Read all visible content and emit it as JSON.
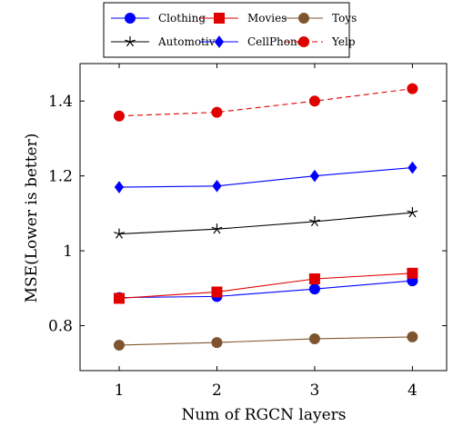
{
  "chart_data": {
    "type": "line",
    "x": [
      1,
      2,
      3,
      4
    ],
    "xticks": [
      "1",
      "2",
      "3",
      "4"
    ],
    "yticks": [
      "0.8",
      "1",
      "1.2",
      "1.4"
    ],
    "ytick_values": [
      0.8,
      1.0,
      1.2,
      1.4
    ],
    "xlabel": "Num of RGCN layers",
    "ylabel": "MSE(Lower is better)",
    "xlim": [
      0.6,
      4.35
    ],
    "ylim": [
      0.68,
      1.5
    ],
    "grid": false,
    "legend_position": "top",
    "series": [
      {
        "name": "Clothing",
        "values": [
          0.875,
          0.878,
          0.898,
          0.92
        ],
        "color": "#0000ff",
        "marker": "circle",
        "dashed": false
      },
      {
        "name": "Movies",
        "values": [
          0.873,
          0.89,
          0.925,
          0.94
        ],
        "color": "#e00000",
        "marker": "square",
        "dashed": false
      },
      {
        "name": "Toys",
        "values": [
          0.748,
          0.755,
          0.765,
          0.77
        ],
        "color": "#7f5530",
        "marker": "circle",
        "dashed": false
      },
      {
        "name": "Automotive",
        "values": [
          1.045,
          1.058,
          1.078,
          1.102
        ],
        "color": "#000000",
        "marker": "star",
        "dashed": false
      },
      {
        "name": "CellPhones",
        "values": [
          1.17,
          1.173,
          1.2,
          1.222
        ],
        "color": "#0000ff",
        "marker": "diamond",
        "dashed": false
      },
      {
        "name": "Yelp",
        "values": [
          1.36,
          1.37,
          1.4,
          1.433
        ],
        "color": "#e00000",
        "marker": "circle",
        "dashed": true
      }
    ]
  }
}
